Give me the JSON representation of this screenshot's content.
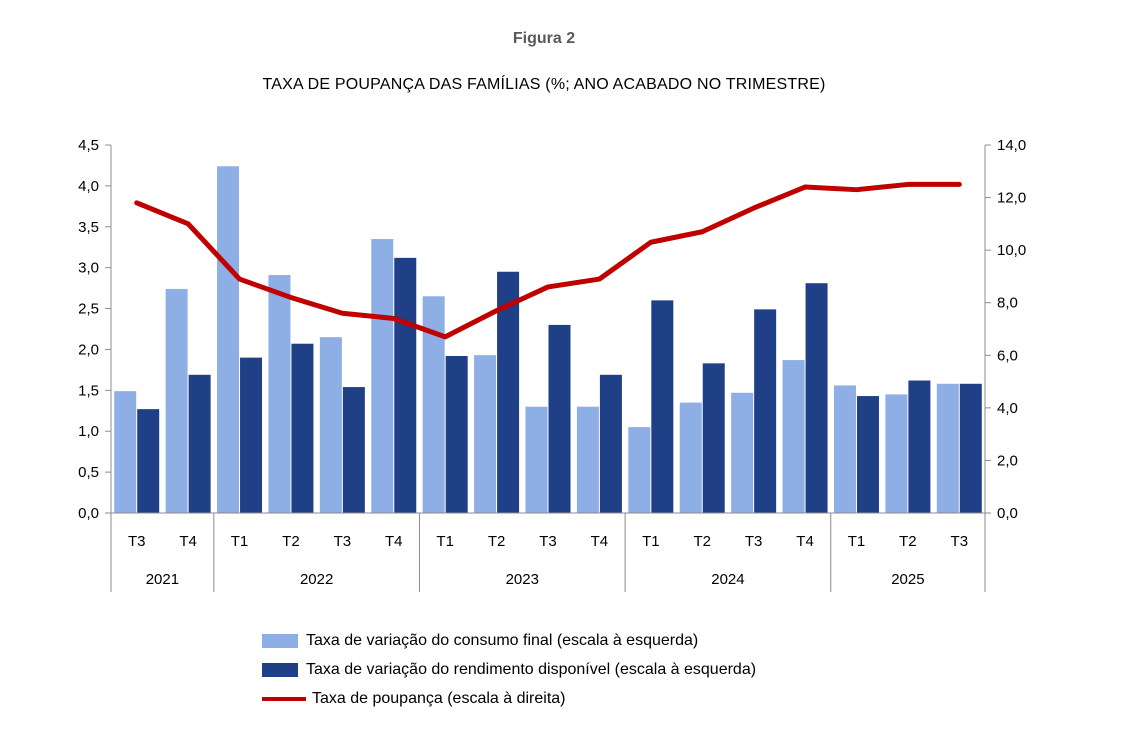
{
  "figure_label": "Figura 2",
  "chart_data": {
    "type": "bar",
    "title": "TAXA DE POUPANÇA DAS FAMÍLIAS (%; ANO ACABADO NO TRIMESTRE)",
    "categories": [
      "T3",
      "T4",
      "T1",
      "T2",
      "T3",
      "T4",
      "T1",
      "T2",
      "T3",
      "T4",
      "T1",
      "T2",
      "T3",
      "T4",
      "T1",
      "T2",
      "T3"
    ],
    "years": [
      {
        "label": "2021",
        "count": 2
      },
      {
        "label": "2022",
        "count": 4
      },
      {
        "label": "2023",
        "count": 4
      },
      {
        "label": "2024",
        "count": 4
      },
      {
        "label": "2025",
        "count": 3
      }
    ],
    "left_axis": {
      "ylim": [
        0,
        4.5
      ],
      "ticks": [
        "0,0",
        "0,5",
        "1,0",
        "1,5",
        "2,0",
        "2,5",
        "3,0",
        "3,5",
        "4,0",
        "4,5"
      ]
    },
    "right_axis": {
      "ylim": [
        0,
        14
      ],
      "ticks": [
        "0,0",
        "2,0",
        "4,0",
        "6,0",
        "8,0",
        "10,0",
        "12,0",
        "14,0"
      ]
    },
    "series": [
      {
        "name": "Taxa de variação do consumo final (escala à esquerda)",
        "type": "bar",
        "axis": "left",
        "color": "#8eaee6",
        "values": [
          1.49,
          2.74,
          4.24,
          2.91,
          2.15,
          3.35,
          2.65,
          1.93,
          1.3,
          1.3,
          1.05,
          1.35,
          1.47,
          1.87,
          1.56,
          1.45,
          1.58
        ]
      },
      {
        "name": "Taxa de variação do rendimento disponível (escala à esquerda)",
        "type": "bar",
        "axis": "left",
        "color": "#1f3f87",
        "values": [
          1.27,
          1.69,
          1.9,
          2.07,
          1.54,
          3.12,
          1.92,
          2.95,
          2.3,
          1.69,
          2.6,
          1.83,
          2.49,
          2.81,
          1.43,
          1.62,
          1.58
        ]
      },
      {
        "name": "Taxa de poupança (escala à direita)",
        "type": "line",
        "axis": "right",
        "color": "#c00000",
        "values": [
          11.8,
          11.0,
          8.9,
          8.2,
          7.6,
          7.4,
          6.7,
          7.7,
          8.6,
          8.9,
          10.3,
          10.7,
          11.6,
          12.4,
          12.3,
          12.5,
          12.5
        ]
      }
    ]
  }
}
